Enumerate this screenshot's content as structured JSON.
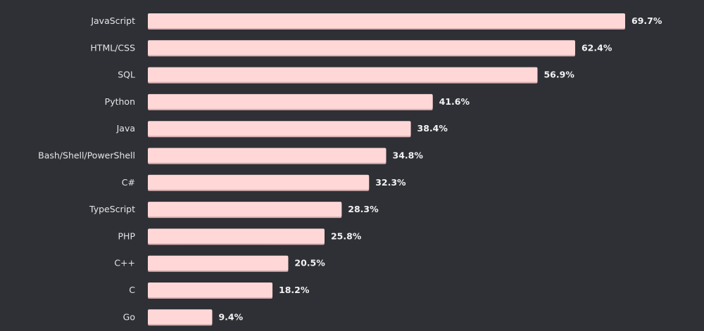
{
  "chart_data": {
    "type": "bar",
    "orientation": "horizontal",
    "categories": [
      "JavaScript",
      "HTML/CSS",
      "SQL",
      "Python",
      "Java",
      "Bash/Shell/PowerShell",
      "C#",
      "TypeScript",
      "PHP",
      "C++",
      "C",
      "Go"
    ],
    "values": [
      69.7,
      62.4,
      56.9,
      41.6,
      38.4,
      34.8,
      32.3,
      28.3,
      25.8,
      20.5,
      18.2,
      9.4
    ],
    "value_labels": [
      "69.7%",
      "62.4%",
      "56.9%",
      "41.6%",
      "38.4%",
      "34.8%",
      "32.3%",
      "28.3%",
      "25.8%",
      "20.5%",
      "18.2%",
      "9.4%"
    ],
    "unit": "%",
    "title": "",
    "xlabel": "",
    "ylabel": "",
    "xlim": [
      0,
      69.7
    ],
    "grid": false,
    "legend": "none"
  },
  "colors": {
    "background": "#2e3035",
    "bar": "#ffd7d7",
    "bar_shadow": "#d9b0b2",
    "label_text": "#e4e5e7",
    "value_text": "#f2f2f3"
  }
}
